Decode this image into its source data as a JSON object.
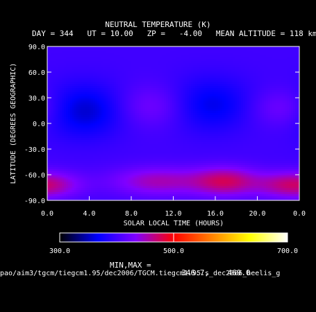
{
  "chart_data": {
    "type": "heatmap",
    "title": "NEUTRAL TEMPERATURE (K)",
    "subtitle": "DAY = 344   UT = 10.00   ZP =   -4.00   MEAN ALTITUDE = 118 km",
    "xlabel": "SOLAR LOCAL TIME (HOURS)",
    "ylabel": "LATITUDE (DEGREES GEOGRAPHIC)",
    "x_ticks": [
      "0.0",
      "4.0",
      "8.0",
      "12.0",
      "16.0",
      "20.0",
      "0.0"
    ],
    "y_ticks": [
      "-90.0",
      "-60.0",
      "-30.0",
      "0.0",
      "30.0",
      "60.0",
      "90.0"
    ],
    "xlim": [
      0,
      24
    ],
    "ylim": [
      -90,
      90
    ],
    "features": [
      {
        "slt": 3.5,
        "lat": 15,
        "temp": 352,
        "sx": 2.8,
        "sy": 22
      },
      {
        "slt": 15.5,
        "lat": 22,
        "temp": 360,
        "sx": 2.8,
        "sy": 22
      },
      {
        "slt": 10.0,
        "lat": 20,
        "temp": 430,
        "sx": 2.5,
        "sy": 18
      },
      {
        "slt": 22.5,
        "lat": 18,
        "temp": 430,
        "sx": 2.2,
        "sy": 16
      },
      {
        "slt": 17.0,
        "lat": -68,
        "temp": 469,
        "sx": 2.2,
        "sy": 12
      },
      {
        "slt": 10.5,
        "lat": -68,
        "temp": 452,
        "sx": 3.2,
        "sy": 12
      },
      {
        "slt": 0.5,
        "lat": -72,
        "temp": 440,
        "sx": 2.2,
        "sy": 11
      },
      {
        "slt": 22.5,
        "lat": -72,
        "temp": 440,
        "sx": 2.2,
        "sy": 11
      }
    ],
    "colorbar": {
      "min": 300.0,
      "max": 700.0,
      "tick_labels": [
        "300.0",
        "500.0",
        "700.0"
      ],
      "colors": [
        "#000000",
        "#0000ff",
        "#8000ff",
        "#ff0000",
        "#ff8000",
        "#ffff00",
        "#ffffff"
      ]
    },
    "min_label": "MIN,MAX =",
    "min_value": "346.7,",
    "max_value": "469.0"
  },
  "footer_path": "pao/aim3/tgcm/tiegcm1.95/dec2006/TGCM.tiegcm1.95.s_dec2006_heelis_g"
}
